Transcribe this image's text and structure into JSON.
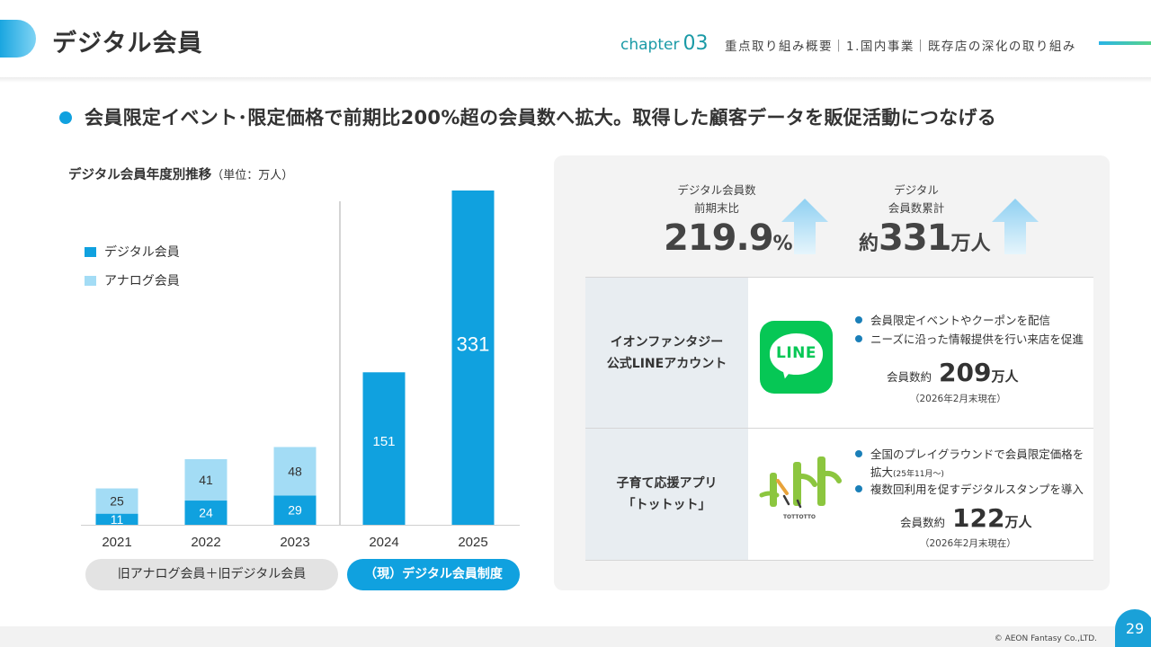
{
  "header": {
    "title": "デジタル会員",
    "chapter_word": "chapter",
    "chapter_num": "03",
    "breadcrumb": "重点取り組み概要｜1.国内事業｜既存店の深化の取り組み"
  },
  "headline": "会員限定イベント･限定価格で前期比200%超の会員数へ拡大。取得した顧客データを販促活動につなげる",
  "chart_data": {
    "type": "bar",
    "title": "デジタル会員年度別推移",
    "unit_label": "（単位：万人）",
    "categories": [
      "2021",
      "2022",
      "2023",
      "2024",
      "2025"
    ],
    "series": [
      {
        "name": "デジタル会員",
        "values": [
          11,
          24,
          29,
          151,
          331
        ],
        "color": "#10a1df"
      },
      {
        "name": "アナログ会員",
        "values": [
          25,
          41,
          48,
          null,
          null
        ],
        "color": "#a3dcf5"
      }
    ],
    "stacked": true,
    "ylim": [
      0,
      331
    ],
    "grid": false,
    "legend_position": "left",
    "period_labels": [
      {
        "label": "旧アナログ会員＋旧デジタル会員",
        "categories": [
          "2021",
          "2022",
          "2023"
        ]
      },
      {
        "label": "（現）デジタル会員制度",
        "categories": [
          "2024",
          "2025"
        ]
      }
    ]
  },
  "stats": {
    "left": {
      "label1": "デジタル会員数",
      "label2": "前期末比",
      "value": "219.9",
      "unit": "%"
    },
    "right": {
      "label1": "デジタル",
      "label2": "会員数累計",
      "prefix": "約",
      "value": "331",
      "unit": "万人"
    }
  },
  "rows": [
    {
      "name_line1": "イオンファンタジー",
      "name_line2": "公式LINEアカウント",
      "logo_text": "LINE",
      "bullets": [
        "会員限定イベントやクーポンを配信",
        "ニーズに沿った情報提供を行い来店を促進"
      ],
      "count_label": "会員数約",
      "count_value": "209",
      "count_unit": "万人",
      "as_of": "（2026年2月末現在）"
    },
    {
      "name_line1": "子育て応援アプリ",
      "name_line2": "「トットット」",
      "logo_text": "TOTTOTTO",
      "bullet1_main": "全国のプレイグラウンドで会員限定価格を",
      "bullet1_cont": "拡大",
      "bullet1_small": "(25年11月～)",
      "bullet2": "複数回利用を促すデジタルスタンプを導入",
      "count_label": "会員数約",
      "count_value": "122",
      "count_unit": "万人",
      "as_of": "（2026年2月末現在）"
    }
  ],
  "footer": {
    "copyright": "© AEON Fantasy Co.,LTD.",
    "page": "29"
  }
}
